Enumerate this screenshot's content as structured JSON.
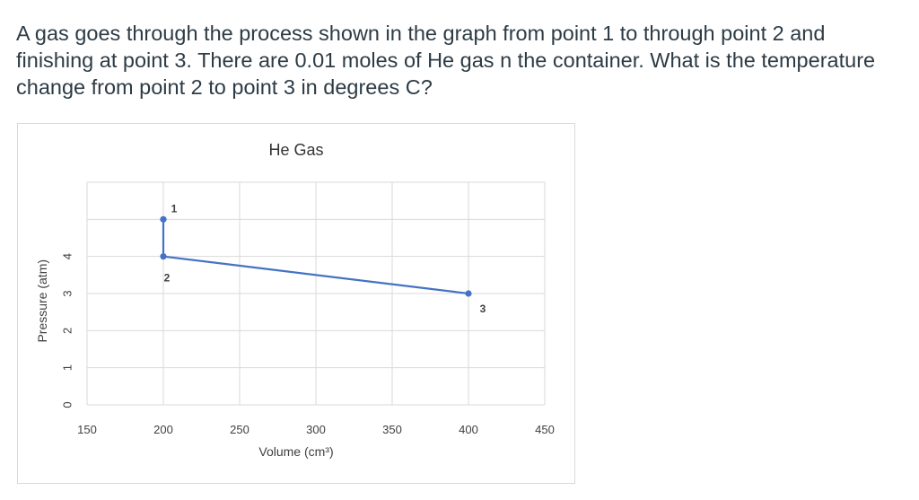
{
  "question": {
    "text": "A gas goes through the process shown in the graph from point 1 to through point 2 and finishing at point 3.  There are 0.01 moles of He gas n the container.  What is the temperature change from point 2 to point 3 in degrees C?"
  },
  "chart_data": {
    "type": "line",
    "title": "He Gas",
    "xlabel": "Volume (cm³)",
    "ylabel": "Pressure (atm)",
    "xlim": [
      150,
      450
    ],
    "ylim": [
      0,
      6
    ],
    "x_ticks": [
      "150",
      "200",
      "250",
      "300",
      "350",
      "400",
      "450"
    ],
    "y_ticks": [
      "0",
      "1",
      "2",
      "3",
      "4"
    ],
    "grid": true,
    "series": [
      {
        "color": "#4472c4",
        "points": [
          {
            "x": 200,
            "y": 5.0,
            "label": "1"
          },
          {
            "x": 200,
            "y": 4.0,
            "label": "2"
          },
          {
            "x": 400,
            "y": 3.0,
            "label": "3"
          }
        ]
      }
    ]
  }
}
